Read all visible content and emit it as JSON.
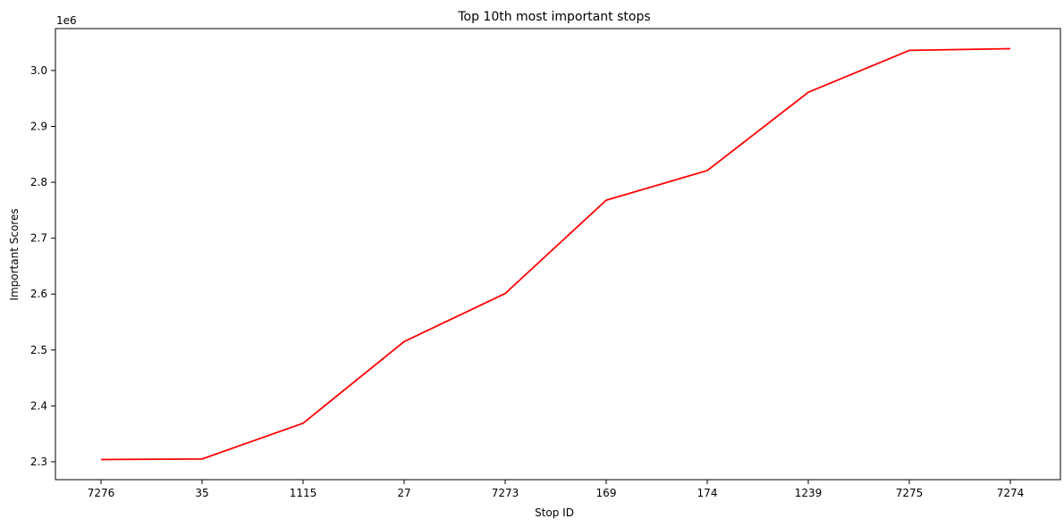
{
  "chart_data": {
    "type": "line",
    "title": "Top 10th most important stops",
    "xlabel": "Stop ID",
    "ylabel": "Important Scores",
    "y_offset_label": "1e6",
    "categories": [
      "7276",
      "35",
      "1115",
      "27",
      "7273",
      "169",
      "174",
      "1239",
      "7275",
      "7274"
    ],
    "series": [
      {
        "color": "#ff0000",
        "values": [
          2304000,
          2305000,
          2369000,
          2515000,
          2601000,
          2768000,
          2821000,
          2961000,
          3036000,
          3039000
        ]
      }
    ],
    "ylim": [
      2268000,
      3075000
    ],
    "yticks": [
      2300000,
      2400000,
      2500000,
      2600000,
      2700000,
      2800000,
      2900000,
      3000000
    ],
    "ytick_labels": [
      "2.3",
      "2.4",
      "2.5",
      "2.6",
      "2.7",
      "2.8",
      "2.9",
      "3.0"
    ],
    "grid": false
  }
}
